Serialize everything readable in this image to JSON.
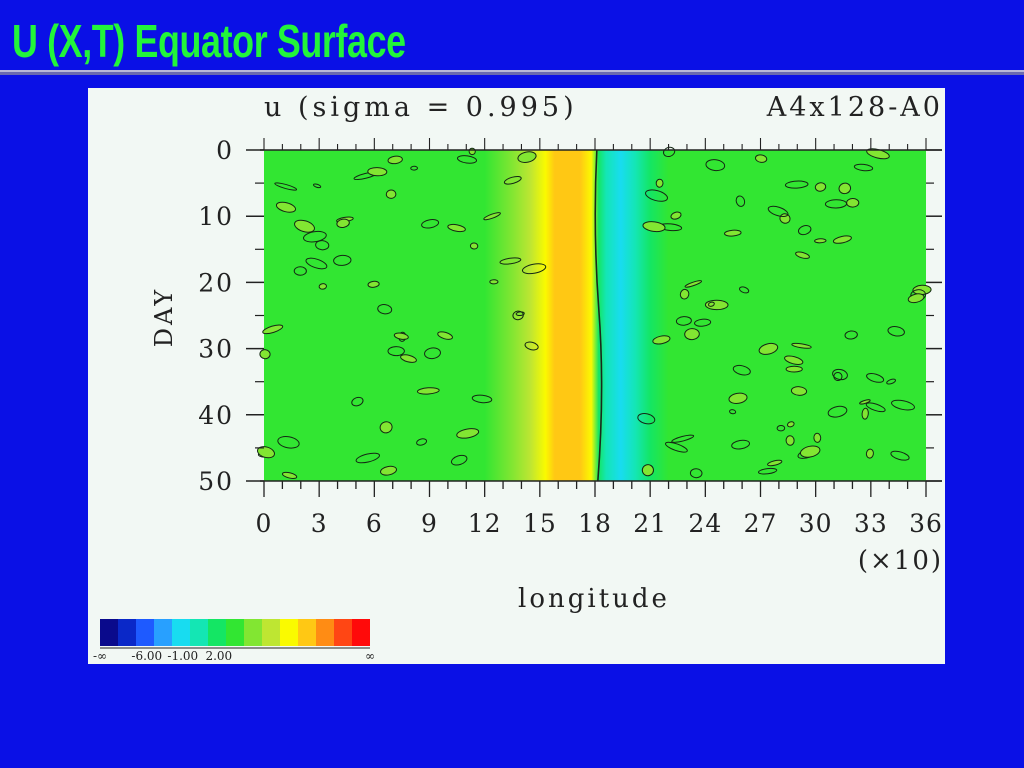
{
  "slide": {
    "title": "U (X,T) Equator Surface"
  },
  "chart_data": {
    "type": "heatmap",
    "title": "u (sigma = 0.995)",
    "subtitle": "A4x128-A0",
    "xlabel": "longitude",
    "x_multiplier_label": "(×10)",
    "ylabel": "DAY",
    "x_ticks": [
      0,
      3,
      6,
      9,
      12,
      15,
      18,
      21,
      24,
      27,
      30,
      33,
      36
    ],
    "y_ticks": [
      0,
      10,
      20,
      30,
      40,
      50
    ],
    "xlim": [
      0,
      36
    ],
    "ylim": [
      0,
      50
    ],
    "y_inverted": true,
    "field_profile": [
      {
        "lon": 0,
        "level": 7
      },
      {
        "lon": 12,
        "level": 7
      },
      {
        "lon": 13.5,
        "level": 8
      },
      {
        "lon": 14.5,
        "level": 9
      },
      {
        "lon": 15.3,
        "level": 10
      },
      {
        "lon": 15.8,
        "level": 11
      },
      {
        "lon": 17.2,
        "level": 11
      },
      {
        "lon": 17.8,
        "level": 10
      },
      {
        "lon": 18.2,
        "level": 6
      },
      {
        "lon": 18.6,
        "level": 5
      },
      {
        "lon": 19.4,
        "level": 4
      },
      {
        "lon": 20.2,
        "level": 5
      },
      {
        "lon": 21.0,
        "level": 6
      },
      {
        "lon": 22.0,
        "level": 7
      },
      {
        "lon": 36,
        "level": 7
      }
    ],
    "colorbar": {
      "colors": [
        "#0a0a8c",
        "#0a28c8",
        "#1e5aff",
        "#28a0ff",
        "#18dcf0",
        "#14e6b4",
        "#14e664",
        "#32e632",
        "#82e632",
        "#bee632",
        "#fafa00",
        "#ffc814",
        "#ff8c14",
        "#ff4614",
        "#ff0a0a"
      ],
      "labels": [
        {
          "text": "-∞",
          "index": 0
        },
        {
          "text": "-6.00",
          "index": 2.6
        },
        {
          "text": "-1.00",
          "index": 4.6
        },
        {
          "text": "2.00",
          "index": 6.6
        },
        {
          "text": "∞",
          "index": 15
        }
      ]
    }
  }
}
